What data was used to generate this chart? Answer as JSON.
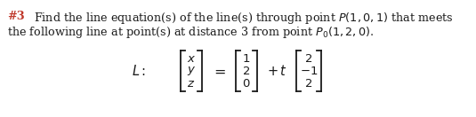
{
  "background_color": "#ffffff",
  "title_number": "#3",
  "title_color": "#c0392b",
  "text_color": "#1a1a1a",
  "figsize": [
    5.35,
    1.32
  ],
  "dpi": 100,
  "fs_body": 9.2,
  "fs_math": 10.5
}
